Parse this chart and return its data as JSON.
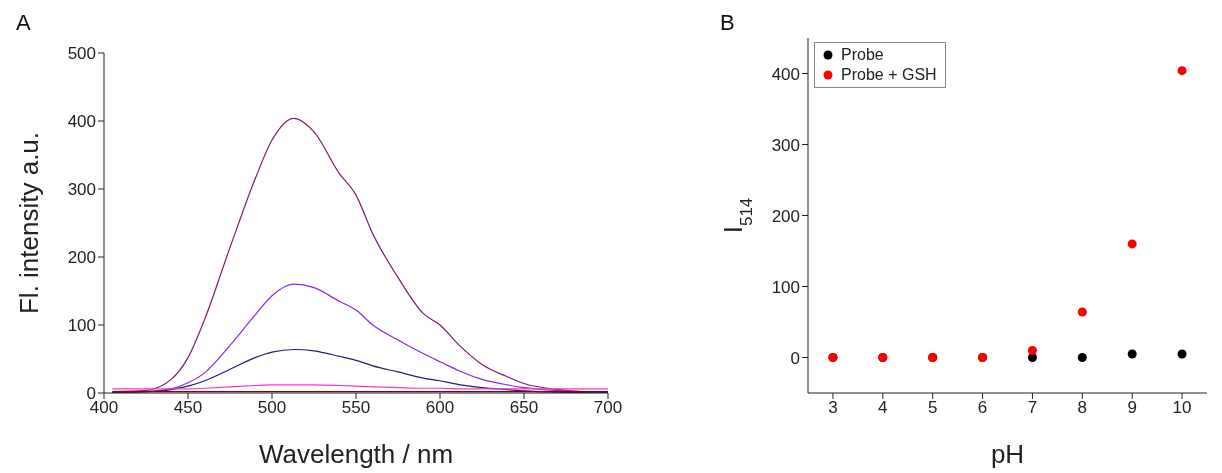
{
  "chart_data": [
    {
      "type": "line",
      "annotations": [
        "A"
      ],
      "xlabel": "Wavelength / nm",
      "ylabel": "Fl. intensity a.u.",
      "x": [
        405,
        425,
        440,
        450,
        460,
        475,
        490,
        500,
        513,
        525,
        540,
        550,
        560,
        575,
        590,
        600,
        612,
        625,
        640,
        650,
        675,
        700
      ],
      "series": [
        {
          "color": "#7a1f6e",
          "values": [
            2,
            4,
            20,
            52,
            109,
            214,
            315,
            372,
            404,
            384,
            323,
            291,
            234,
            170,
            117,
            100,
            69,
            42,
            24,
            14,
            4,
            1
          ]
        },
        {
          "color": "#8a2be2",
          "values": [
            1,
            2,
            6,
            15,
            30,
            70,
            115,
            143,
            160,
            155,
            135,
            122,
            100,
            78,
            58,
            46,
            32,
            20,
            12,
            8,
            3,
            1
          ]
        },
        {
          "color": "#1f1f7a",
          "values": [
            1,
            2,
            5,
            10,
            18,
            35,
            52,
            60,
            64,
            62,
            54,
            48,
            40,
            31,
            22,
            18,
            12,
            8,
            5,
            3,
            1,
            0
          ]
        },
        {
          "color": "#ff33cc",
          "values": [
            6,
            6,
            6,
            6,
            7,
            9,
            11,
            12,
            12,
            12,
            11,
            10,
            9,
            8,
            7,
            7,
            6,
            6,
            6,
            6,
            6,
            6
          ]
        },
        {
          "color": "#8b0000",
          "values": [
            2,
            2,
            2,
            2,
            2,
            2,
            2,
            2,
            2,
            2,
            2,
            2,
            2,
            2,
            2,
            2,
            2,
            2,
            2,
            2,
            2,
            2
          ]
        }
      ],
      "xlim": [
        400,
        700
      ],
      "xticks": [
        400,
        450,
        500,
        550,
        600,
        650,
        700
      ],
      "ylim": [
        0,
        500
      ],
      "yticks": [
        0,
        100,
        200,
        300,
        400,
        500
      ],
      "grid": false,
      "legend": false,
      "marker": "none",
      "line_style": "solid"
    },
    {
      "type": "scatter",
      "annotations": [
        "B"
      ],
      "xlabel": "pH",
      "ylabel": "I$_{514}$",
      "x": [
        3,
        4,
        5,
        6,
        7,
        8,
        9,
        10
      ],
      "series": [
        {
          "name": "Probe",
          "color": "#000000",
          "values": [
            0,
            0,
            0,
            0,
            0,
            0,
            5,
            5
          ]
        },
        {
          "name": "Probe + GSH",
          "color": "#ff0000",
          "values": [
            0,
            0,
            0,
            0,
            10,
            64,
            160,
            404
          ]
        }
      ],
      "xlim": [
        2.5,
        10.5
      ],
      "xticks": [
        3,
        4,
        5,
        6,
        7,
        8,
        9,
        10
      ],
      "ylim": [
        -50,
        450
      ],
      "yticks": [
        0,
        100,
        200,
        300,
        400
      ],
      "grid": false,
      "legend": "top left",
      "marker": "circle"
    }
  ]
}
